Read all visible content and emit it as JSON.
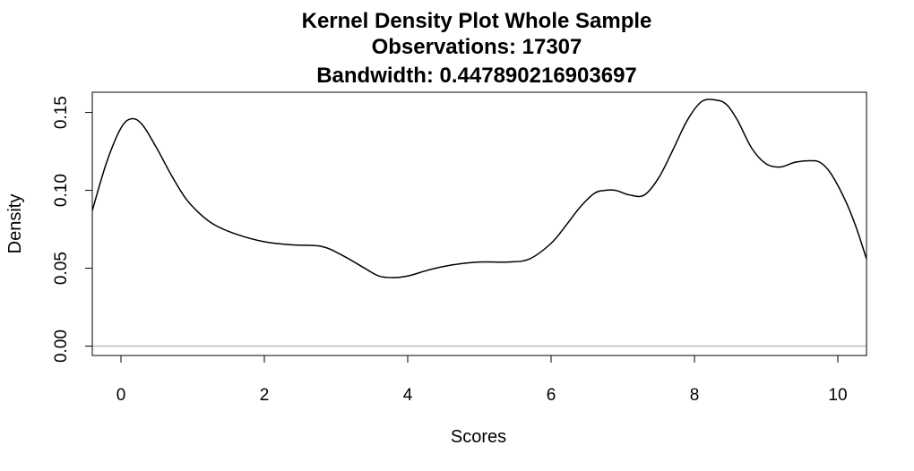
{
  "chart_data": {
    "type": "line",
    "title_lines": [
      "Kernel Density Plot Whole Sample",
      "Observations: 17307",
      "Bandwidth: 0.447890216903697"
    ],
    "xlabel": "Scores",
    "ylabel": "Density",
    "xlim": [
      -0.4,
      10.4
    ],
    "ylim": [
      -0.006,
      0.163
    ],
    "x_ticks": [
      0,
      2,
      4,
      6,
      8,
      10
    ],
    "x_tick_labels": [
      "0",
      "2",
      "4",
      "6",
      "8",
      "10"
    ],
    "y_ticks": [
      0.0,
      0.05,
      0.1,
      0.15
    ],
    "y_tick_labels": [
      "0.00",
      "0.05",
      "0.10",
      "0.15"
    ],
    "grid": false,
    "baseline": 0,
    "colors": {
      "line": "#000000",
      "baseline": "#bebebe"
    },
    "series": [
      {
        "x": [
          -0.4,
          -0.2,
          0.0,
          0.15,
          0.3,
          0.5,
          0.7,
          0.9,
          1.1,
          1.3,
          1.6,
          2.0,
          2.4,
          2.8,
          3.1,
          3.4,
          3.6,
          3.8,
          4.0,
          4.3,
          4.6,
          5.0,
          5.4,
          5.7,
          6.0,
          6.2,
          6.4,
          6.6,
          6.75,
          6.9,
          7.1,
          7.3,
          7.5,
          7.7,
          7.9,
          8.1,
          8.3,
          8.45,
          8.6,
          8.8,
          9.0,
          9.2,
          9.4,
          9.6,
          9.75,
          9.9,
          10.1,
          10.25,
          10.4
        ],
        "y": [
          0.087,
          0.118,
          0.14,
          0.146,
          0.142,
          0.127,
          0.11,
          0.095,
          0.085,
          0.078,
          0.072,
          0.067,
          0.065,
          0.064,
          0.058,
          0.05,
          0.045,
          0.044,
          0.045,
          0.049,
          0.052,
          0.054,
          0.054,
          0.056,
          0.066,
          0.077,
          0.089,
          0.098,
          0.1,
          0.1,
          0.097,
          0.097,
          0.108,
          0.126,
          0.145,
          0.157,
          0.158,
          0.155,
          0.145,
          0.127,
          0.117,
          0.115,
          0.118,
          0.119,
          0.118,
          0.111,
          0.094,
          0.077,
          0.056
        ]
      }
    ]
  }
}
